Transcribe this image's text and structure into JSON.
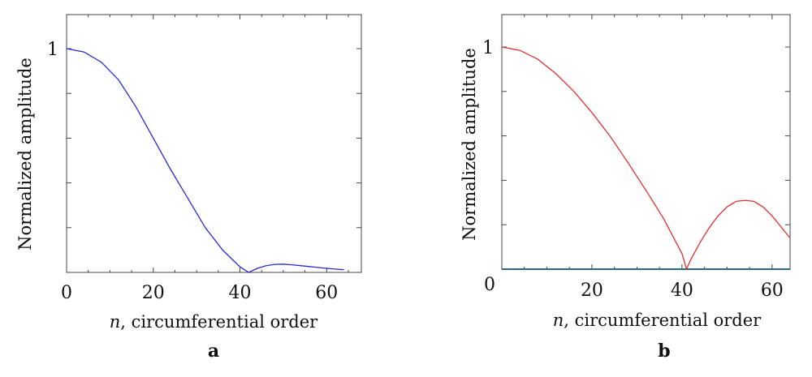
{
  "chart_data": [
    {
      "type": "line",
      "panel": "a",
      "xlabel_var": "n",
      "xlabel_rest": ", circumferential order",
      "ylabel": "Normalized amplitude",
      "xlim": [
        0,
        68
      ],
      "ylim": [
        0,
        1.0
      ],
      "xticks": [
        0,
        20,
        40,
        60
      ],
      "yticks": [
        1
      ],
      "ytick_labels": [
        "1"
      ],
      "series": [
        {
          "color": "#2a2ad8",
          "x": [
            0,
            4,
            8,
            12,
            16,
            20,
            24,
            28,
            32,
            36,
            40,
            42,
            44,
            46,
            48,
            50,
            52,
            54,
            56,
            58,
            60,
            62,
            64
          ],
          "y": [
            1.0,
            0.985,
            0.94,
            0.86,
            0.74,
            0.6,
            0.46,
            0.33,
            0.2,
            0.1,
            0.025,
            0.0,
            0.018,
            0.03,
            0.036,
            0.037,
            0.034,
            0.03,
            0.026,
            0.022,
            0.018,
            0.015,
            0.012
          ]
        }
      ]
    },
    {
      "type": "line",
      "panel": "b",
      "xlabel_var": "n",
      "xlabel_rest": ", circumferential order",
      "ylabel": "Normalized amplitude",
      "xlim": [
        0,
        64
      ],
      "ylim": [
        0,
        1.0
      ],
      "xticks": [
        0,
        20,
        40,
        60
      ],
      "xtick_labels": [
        "",
        "20",
        "40",
        "60"
      ],
      "origin_label": "0",
      "yticks": [
        1
      ],
      "ytick_labels": [
        "1"
      ],
      "series": [
        {
          "color": "#e03030",
          "x": [
            0,
            4,
            8,
            12,
            16,
            20,
            24,
            28,
            32,
            36,
            40,
            41,
            42,
            44,
            46,
            48,
            50,
            52,
            54,
            56,
            58,
            60,
            62,
            64
          ],
          "y": [
            1.0,
            0.985,
            0.945,
            0.88,
            0.8,
            0.705,
            0.6,
            0.48,
            0.355,
            0.225,
            0.07,
            0.0,
            0.045,
            0.12,
            0.185,
            0.24,
            0.28,
            0.305,
            0.31,
            0.305,
            0.28,
            0.24,
            0.19,
            0.14
          ]
        },
        {
          "color": "#2a6a7a",
          "x": [
            0,
            64
          ],
          "y": [
            0.0,
            0.0
          ]
        }
      ]
    }
  ]
}
